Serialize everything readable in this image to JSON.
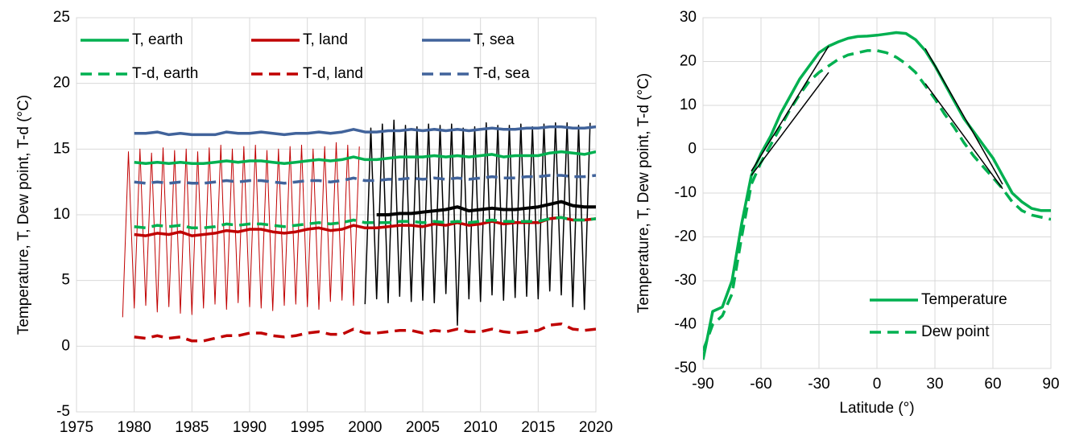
{
  "chart_data": [
    {
      "type": "line",
      "ylabel": "Temperature, T, Dew point, T-d (°C)",
      "xlim": [
        1975,
        2020
      ],
      "xticks": [
        1975,
        1980,
        1985,
        1990,
        1995,
        2000,
        2005,
        2010,
        2015,
        2020
      ],
      "ylim": [
        -5,
        25
      ],
      "yticks": [
        -5,
        0,
        5,
        10,
        15,
        20,
        25
      ],
      "grid": true,
      "legend": "upper left",
      "series": [
        {
          "color": "#c00000",
          "linewidth": 1,
          "x": [
            1979,
            1979.5,
            1980,
            1980.5,
            1981,
            1981.5,
            1982,
            1982.5,
            1983,
            1983.5,
            1984,
            1984.5,
            1985,
            1985.5,
            1986,
            1986.5,
            1987,
            1987.5,
            1988,
            1988.5,
            1989,
            1989.5,
            1990,
            1990.5,
            1991,
            1991.5,
            1992,
            1992.5,
            1993,
            1993.5,
            1994,
            1994.5,
            1995,
            1995.5,
            1996,
            1996.5,
            1997,
            1997.5,
            1998,
            1998.5,
            1999,
            1999.5
          ],
          "values": [
            2.2,
            14.8,
            2.9,
            15.0,
            3.1,
            14.7,
            2.6,
            15.1,
            3.0,
            14.9,
            2.5,
            15.0,
            2.4,
            14.8,
            2.9,
            15.1,
            3.2,
            15.3,
            2.8,
            15.0,
            3.3,
            15.2,
            3.0,
            15.3,
            2.9,
            14.9,
            2.7,
            15.0,
            3.1,
            15.2,
            3.2,
            15.3,
            3.0,
            15.0,
            2.8,
            15.2,
            3.4,
            15.5,
            3.5,
            15.3,
            3.1,
            15.2
          ]
        },
        {
          "color": "#000000",
          "linewidth": 1.5,
          "x": [
            2000,
            2000.5,
            2001,
            2001.5,
            2002,
            2002.5,
            2003,
            2003.5,
            2004,
            2004.5,
            2005,
            2005.5,
            2006,
            2006.5,
            2007,
            2007.5,
            2008,
            2008.5,
            2009,
            2009.5,
            2010,
            2010.5,
            2011,
            2011.5,
            2012,
            2012.5,
            2013,
            2013.5,
            2014,
            2014.5,
            2015,
            2015.5,
            2016,
            2016.5,
            2017,
            2017.5,
            2018,
            2018.5,
            2019,
            2019.5
          ],
          "values": [
            3.2,
            16.6,
            3.6,
            16.9,
            3.3,
            17.2,
            3.8,
            16.8,
            3.4,
            16.7,
            3.5,
            16.9,
            3.3,
            16.8,
            4.0,
            16.9,
            1.6,
            16.6,
            3.6,
            16.7,
            3.4,
            17.0,
            3.9,
            16.8,
            3.5,
            16.8,
            3.7,
            16.9,
            3.8,
            16.7,
            3.6,
            16.9,
            4.2,
            17.0,
            3.9,
            17.0,
            3.0,
            16.8,
            2.8,
            17.0
          ]
        },
        {
          "name": "T, earth",
          "color": "#00b050",
          "linewidth": 3.5,
          "x": [
            1980,
            1981,
            1982,
            1983,
            1984,
            1985,
            1986,
            1987,
            1988,
            1989,
            1990,
            1991,
            1992,
            1993,
            1994,
            1995,
            1996,
            1997,
            1998,
            1999,
            2000,
            2001,
            2002,
            2003,
            2004,
            2005,
            2006,
            2007,
            2008,
            2009,
            2010,
            2011,
            2012,
            2013,
            2014,
            2015,
            2016,
            2017,
            2018,
            2019,
            2020
          ],
          "values": [
            14.0,
            13.9,
            14.0,
            13.9,
            14.0,
            13.9,
            13.9,
            14.0,
            14.1,
            14.0,
            14.1,
            14.1,
            14.0,
            13.9,
            14.0,
            14.1,
            14.2,
            14.1,
            14.2,
            14.4,
            14.2,
            14.2,
            14.3,
            14.4,
            14.4,
            14.4,
            14.5,
            14.4,
            14.5,
            14.4,
            14.5,
            14.6,
            14.4,
            14.5,
            14.5,
            14.5,
            14.7,
            14.8,
            14.7,
            14.6,
            14.8
          ]
        },
        {
          "name": "T, land",
          "color": "#c00000",
          "linewidth": 3.5,
          "x": [
            1980,
            1981,
            1982,
            1983,
            1984,
            1985,
            1986,
            1987,
            1988,
            1989,
            1990,
            1991,
            1992,
            1993,
            1994,
            1995,
            1996,
            1997,
            1998,
            1999,
            2000,
            2001,
            2002,
            2003,
            2004,
            2005,
            2006,
            2007,
            2008,
            2009,
            2010,
            2011,
            2012,
            2013,
            2014,
            2015,
            2016,
            2017,
            2018,
            2019,
            2020
          ],
          "values": [
            8.5,
            8.4,
            8.6,
            8.5,
            8.7,
            8.4,
            8.5,
            8.6,
            8.8,
            8.7,
            8.9,
            8.9,
            8.7,
            8.6,
            8.7,
            8.9,
            9.0,
            8.8,
            8.9,
            9.2,
            9.0,
            9.0,
            9.1,
            9.2,
            9.2,
            9.1,
            9.3,
            9.2,
            9.4,
            9.2,
            9.3,
            9.5,
            9.3,
            9.4,
            9.4,
            9.4,
            9.7,
            9.8,
            9.6,
            9.6,
            9.7
          ]
        },
        {
          "name": "T, sea",
          "color": "#41639b",
          "linewidth": 3.5,
          "x": [
            1980,
            1981,
            1982,
            1983,
            1984,
            1985,
            1986,
            1987,
            1988,
            1989,
            1990,
            1991,
            1992,
            1993,
            1994,
            1995,
            1996,
            1997,
            1998,
            1999,
            2000,
            2001,
            2002,
            2003,
            2004,
            2005,
            2006,
            2007,
            2008,
            2009,
            2010,
            2011,
            2012,
            2013,
            2014,
            2015,
            2016,
            2017,
            2018,
            2019,
            2020
          ],
          "values": [
            16.2,
            16.2,
            16.3,
            16.1,
            16.2,
            16.1,
            16.1,
            16.1,
            16.3,
            16.2,
            16.2,
            16.3,
            16.2,
            16.1,
            16.2,
            16.2,
            16.3,
            16.2,
            16.3,
            16.5,
            16.3,
            16.3,
            16.4,
            16.4,
            16.5,
            16.4,
            16.5,
            16.4,
            16.5,
            16.4,
            16.5,
            16.6,
            16.5,
            16.5,
            16.6,
            16.6,
            16.7,
            16.7,
            16.6,
            16.6,
            16.7
          ]
        },
        {
          "name": "T‐d, earth",
          "color": "#00b050",
          "linewidth": 3.5,
          "dashed": true,
          "x": [
            1980,
            1981,
            1982,
            1983,
            1984,
            1985,
            1986,
            1987,
            1988,
            1989,
            1990,
            1991,
            1992,
            1993,
            1994,
            1995,
            1996,
            1997,
            1998,
            1999,
            2000,
            2001,
            2002,
            2003,
            2004,
            2005,
            2006,
            2007,
            2008,
            2009,
            2010,
            2011,
            2012,
            2013,
            2014,
            2015,
            2016,
            2017,
            2018,
            2019,
            2020
          ],
          "values": [
            9.1,
            9.0,
            9.2,
            9.1,
            9.2,
            9.0,
            9.0,
            9.1,
            9.3,
            9.2,
            9.3,
            9.3,
            9.2,
            9.1,
            9.2,
            9.3,
            9.4,
            9.3,
            9.4,
            9.6,
            9.4,
            9.4,
            9.4,
            9.5,
            9.5,
            9.4,
            9.5,
            9.4,
            9.5,
            9.4,
            9.5,
            9.6,
            9.5,
            9.5,
            9.5,
            9.5,
            9.7,
            9.8,
            9.6,
            9.6,
            9.7
          ]
        },
        {
          "name": "T‐d, land",
          "color": "#c00000",
          "linewidth": 3.5,
          "dashed": true,
          "x": [
            1980,
            1981,
            1982,
            1983,
            1984,
            1985,
            1986,
            1987,
            1988,
            1989,
            1990,
            1991,
            1992,
            1993,
            1994,
            1995,
            1996,
            1997,
            1998,
            1999,
            2000,
            2001,
            2002,
            2003,
            2004,
            2005,
            2006,
            2007,
            2008,
            2009,
            2010,
            2011,
            2012,
            2013,
            2014,
            2015,
            2016,
            2017,
            2018,
            2019,
            2020
          ],
          "values": [
            0.7,
            0.6,
            0.8,
            0.6,
            0.7,
            0.4,
            0.4,
            0.6,
            0.8,
            0.8,
            1.0,
            1.0,
            0.8,
            0.7,
            0.8,
            1.0,
            1.1,
            0.9,
            0.9,
            1.3,
            1.0,
            1.0,
            1.1,
            1.2,
            1.2,
            1.0,
            1.2,
            1.1,
            1.3,
            1.1,
            1.1,
            1.3,
            1.1,
            1.0,
            1.1,
            1.2,
            1.6,
            1.7,
            1.3,
            1.2,
            1.3
          ]
        },
        {
          "name": "T‐d, sea",
          "color": "#41639b",
          "linewidth": 3.5,
          "dashed": true,
          "x": [
            1980,
            1981,
            1982,
            1983,
            1984,
            1985,
            1986,
            1987,
            1988,
            1989,
            1990,
            1991,
            1992,
            1993,
            1994,
            1995,
            1996,
            1997,
            1998,
            1999,
            2000,
            2001,
            2002,
            2003,
            2004,
            2005,
            2006,
            2007,
            2008,
            2009,
            2010,
            2011,
            2012,
            2013,
            2014,
            2015,
            2016,
            2017,
            2018,
            2019,
            2020
          ],
          "values": [
            12.5,
            12.4,
            12.5,
            12.4,
            12.5,
            12.4,
            12.4,
            12.5,
            12.6,
            12.5,
            12.6,
            12.6,
            12.5,
            12.4,
            12.5,
            12.6,
            12.6,
            12.5,
            12.6,
            12.8,
            12.6,
            12.6,
            12.7,
            12.7,
            12.8,
            12.7,
            12.8,
            12.7,
            12.8,
            12.7,
            12.8,
            12.9,
            12.8,
            12.8,
            12.9,
            12.9,
            13.0,
            13.0,
            12.9,
            12.9,
            13.0
          ]
        },
        {
          "color": "#000000",
          "linewidth": 4,
          "x": [
            2001,
            2002,
            2003,
            2004,
            2005,
            2006,
            2007,
            2008,
            2009,
            2010,
            2011,
            2012,
            2013,
            2014,
            2015,
            2016,
            2017,
            2018,
            2019,
            2020
          ],
          "values": [
            10.0,
            10.0,
            10.1,
            10.1,
            10.2,
            10.3,
            10.4,
            10.6,
            10.3,
            10.4,
            10.5,
            10.4,
            10.4,
            10.5,
            10.6,
            10.8,
            11.0,
            10.7,
            10.6,
            10.6
          ]
        }
      ]
    },
    {
      "type": "line",
      "xlabel": "Latitude  (°)",
      "ylabel": "Temperature, T, Dew point, T-d (°C)",
      "xlim": [
        -90,
        90
      ],
      "xticks": [
        -90,
        -60,
        -30,
        0,
        30,
        60,
        90
      ],
      "ylim": [
        -50,
        30
      ],
      "yticks": [
        -50,
        -40,
        -30,
        -20,
        -10,
        0,
        10,
        20,
        30
      ],
      "grid": true,
      "legend": "lower right",
      "series": [
        {
          "name": "Temperature",
          "color": "#00b050",
          "linewidth": 3.5,
          "x": [
            -90,
            -85,
            -80,
            -75,
            -70,
            -65,
            -60,
            -55,
            -50,
            -45,
            -40,
            -35,
            -30,
            -25,
            -20,
            -15,
            -10,
            -5,
            0,
            5,
            10,
            15,
            20,
            25,
            30,
            35,
            40,
            45,
            50,
            55,
            60,
            65,
            70,
            75,
            80,
            85,
            90
          ],
          "values": [
            -48,
            -37,
            -36,
            -30,
            -17,
            -6,
            -1,
            3,
            8,
            12,
            16,
            19,
            22,
            23.5,
            24.5,
            25.3,
            25.7,
            25.8,
            26,
            26.3,
            26.6,
            26.4,
            25,
            22.5,
            19,
            15,
            11,
            7,
            4,
            1,
            -2,
            -6,
            -10,
            -12,
            -13.5,
            -14,
            -14
          ]
        },
        {
          "name": "Dew point",
          "color": "#00b050",
          "linewidth": 3.5,
          "dashed": true,
          "x": [
            -90,
            -85,
            -80,
            -75,
            -70,
            -65,
            -60,
            -55,
            -50,
            -45,
            -40,
            -35,
            -30,
            -25,
            -20,
            -15,
            -10,
            -5,
            0,
            5,
            10,
            15,
            20,
            25,
            30,
            35,
            40,
            45,
            50,
            55,
            60,
            65,
            70,
            75,
            80,
            85,
            90
          ],
          "values": [
            -46,
            -40,
            -38,
            -33,
            -20,
            -8,
            -3,
            1,
            5,
            9,
            12.5,
            15.5,
            17.5,
            19,
            20.5,
            21.5,
            22,
            22.5,
            22.5,
            22,
            21,
            19.5,
            17.5,
            14.5,
            11.5,
            8,
            5,
            1.5,
            -1.5,
            -4,
            -6.5,
            -9,
            -12,
            -14,
            -15,
            -15.5,
            -16
          ]
        },
        {
          "color": "#000000",
          "linewidth": 1.5,
          "x": [
            -65,
            -25
          ],
          "values": [
            -5,
            23.5
          ]
        },
        {
          "color": "#000000",
          "linewidth": 1.5,
          "x": [
            -65,
            -25
          ],
          "values": [
            -6,
            17.5
          ]
        },
        {
          "color": "#000000",
          "linewidth": 1.5,
          "x": [
            25,
            65
          ],
          "values": [
            23,
            -8
          ]
        },
        {
          "color": "#000000",
          "linewidth": 1.5,
          "x": [
            25,
            65
          ],
          "values": [
            15,
            -9
          ]
        }
      ]
    }
  ]
}
